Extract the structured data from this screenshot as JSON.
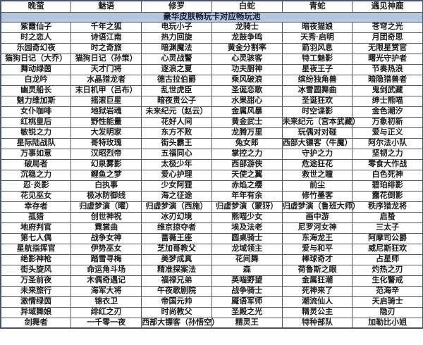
{
  "table": {
    "title": "豪华皮肤畅玩卡对应畅玩池",
    "columns": [
      "晚萤",
      "魅语",
      "修罗",
      "白蛇",
      "青蛇",
      "遇见神鹿"
    ],
    "rows": [
      [
        "紫霞仙子",
        "千年之狐",
        "电玩小子",
        "龙骑士",
        "暗夜猫娘",
        "苍穹之光"
      ],
      [
        "时之恋人",
        "诗语江南",
        "热力回旋",
        "龙鼓争鸣",
        "天秀·启明",
        "月团奇思"
      ],
      [
        "乐园奇幻夜",
        "时之奇旅",
        "暗渊魔法",
        "黄金分割率",
        "箭羽风息",
        "无限星赏官"
      ],
      [
        "猫狗日记（大乔）",
        "猫狗日记（孙策）",
        "心灵战警",
        "心灵骇客",
        "特工魅影",
        "曙光守护者"
      ],
      [
        "舞动绿茵",
        "天才门将",
        "逐浪之夏",
        "功夫厨神",
        "星夜王子",
        "节奏热浪"
      ],
      [
        "白龙吟",
        "水晶猎龙者",
        "德古拉伯爵",
        "乘风破浪",
        "缤纷独角兽",
        "暗隐猎兽者"
      ],
      [
        "幽灵船长",
        "末日机甲（吕布）",
        "乱世虎臣",
        "圣诞恋歌",
        "冰雪圆舞曲",
        "鬼剑武藏"
      ],
      [
        "魅力维加斯",
        "摇滚巨星",
        "暗夜贵公子",
        "水果甜心",
        "圣诞狂欢",
        "绅士熊喵"
      ],
      [
        "女仆咖啡",
        "地狱岩魂",
        "未来纪元（赵云）",
        "金属风暴",
        "时空谍影",
        "金色潮汐"
      ],
      [
        "红桃皇后",
        "野性能量",
        "花好人间",
        "黄金武士",
        "未来纪元（宫本武藏）",
        "万象初新"
      ],
      [
        "敏锐之力",
        "大发明家",
        "东方不败",
        "龙腾万里",
        "玩偶对对碰",
        "爱与正义"
      ],
      [
        "星际陆战队",
        "哥特玫瑰",
        "街头霸王",
        "兔女郎",
        "西部大镖客（牛魔）",
        "阿尔法小队"
      ],
      [
        "万事如意",
        "汉昭烈帝",
        "五福同心",
        "掌控之力",
        "守护之力",
        "坚韧之力"
      ],
      [
        "破局者",
        "幻泉雾影",
        "太极少年",
        "西部游侠",
        "危途狂花",
        "零食大作战"
      ],
      [
        "沉稳之力",
        "鲤鱼之梦",
        "爱心护理",
        "天使之翼",
        "救世之瞳",
        "白色死神"
      ],
      [
        "忍·炎影",
        "白执事",
        "少女阿狸",
        "赤焰之缨",
        "前尘",
        "碧珀绯影"
      ],
      [
        "花见巫女",
        "极冰防御线",
        "海之征途",
        "年年有余",
        "修竹墨客",
        "露花倒影"
      ],
      [
        "幸存者",
        "归虚梦演（曜）",
        "归虚梦演（西施）",
        "归虚梦演（蒙犽）",
        "归虚梦演（鲁班大师）",
        "秩序猎龙将"
      ],
      [
        "孤猎",
        "创世神祝",
        "冰刃幻境",
        "熊喵少女",
        "画中游",
        "启蛰"
      ],
      [
        "地府判官",
        "霓裳曲",
        "维京掠夺者",
        "埃及法老",
        "尼罗河女神",
        "三太子"
      ],
      [
        "第七人偶",
        "战争女神",
        "蔷薇王座",
        "圆桌骑士",
        "东海龙王",
        "阿摩司公爵"
      ],
      [
        "星航指挥官",
        "伊势巫女",
        "芝加哥教父",
        "龙域领主",
        "爱与和平",
        "威尼斯狂欢"
      ],
      [
        "绝影神枪",
        "踏雪寻梅",
        "美梦成真",
        "花间舞",
        "棒球奇才",
        "占星师"
      ],
      [
        "街头旋风",
        "命运角斗场",
        "精准探案法",
        "森",
        "荷鲁斯之眼",
        "灼热之刃"
      ],
      [
        "万圣前夜",
        "木偶奇遇记",
        "福禄兄弟",
        "英喵野望",
        "金属狂潮",
        "生化警戒"
      ],
      [
        "未来旅行",
        "海军大将",
        "午夜歌剧院",
        "战争骑士",
        "死神来了",
        "范海辛"
      ],
      [
        "激情绿茵",
        "锦衣卫",
        "帝国元帅",
        "魇语军师",
        "潮流仙人",
        "天启骑士"
      ],
      [
        "异域舞娘",
        "绯红之刃",
        "时尚教父",
        "圣殿之光",
        "精灵公主",
        "隐刃"
      ],
      [
        "剑舞者",
        "一千零一夜",
        "西部大镖客（孙悟空）",
        "精灵王",
        "特种部队",
        "加勒比小姐"
      ]
    ]
  },
  "colors": {
    "title_bg": "#b6c6dc",
    "title_text": "#151a2e",
    "cell_text": "#1c1c1c",
    "grid_border": "#5a5a5a",
    "outer_border": "#49536b",
    "body_bg": "#ffffff"
  }
}
